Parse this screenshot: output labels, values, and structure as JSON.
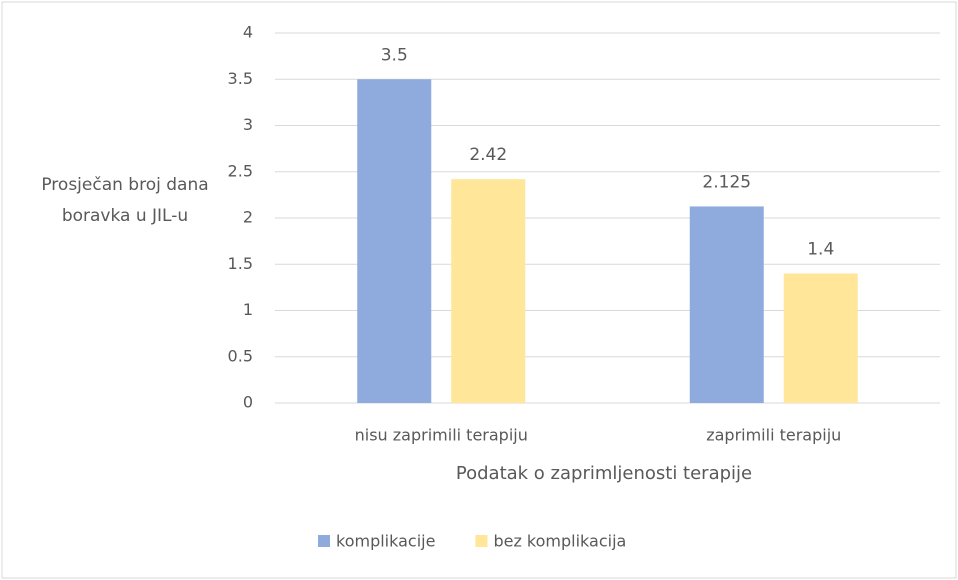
{
  "chart_data": {
    "type": "bar",
    "categories": [
      "nisu zaprimili terapiju",
      "zaprimili terapiju"
    ],
    "series": [
      {
        "name": "komplikacije",
        "color": "#8faadc",
        "values": [
          3.5,
          2.125
        ]
      },
      {
        "name": "bez komplikacija",
        "color": "#ffe699",
        "values": [
          2.42,
          1.4
        ]
      }
    ],
    "xlabel": "Podatak o zaprimljenosti terapije",
    "ylabel": "Prosječan broj dana boravka u JIL-u",
    "ylim": [
      0,
      4
    ],
    "yticks": [
      0,
      0.5,
      1,
      1.5,
      2,
      2.5,
      3,
      3.5,
      4
    ],
    "grid": true,
    "legend": "bottom"
  }
}
